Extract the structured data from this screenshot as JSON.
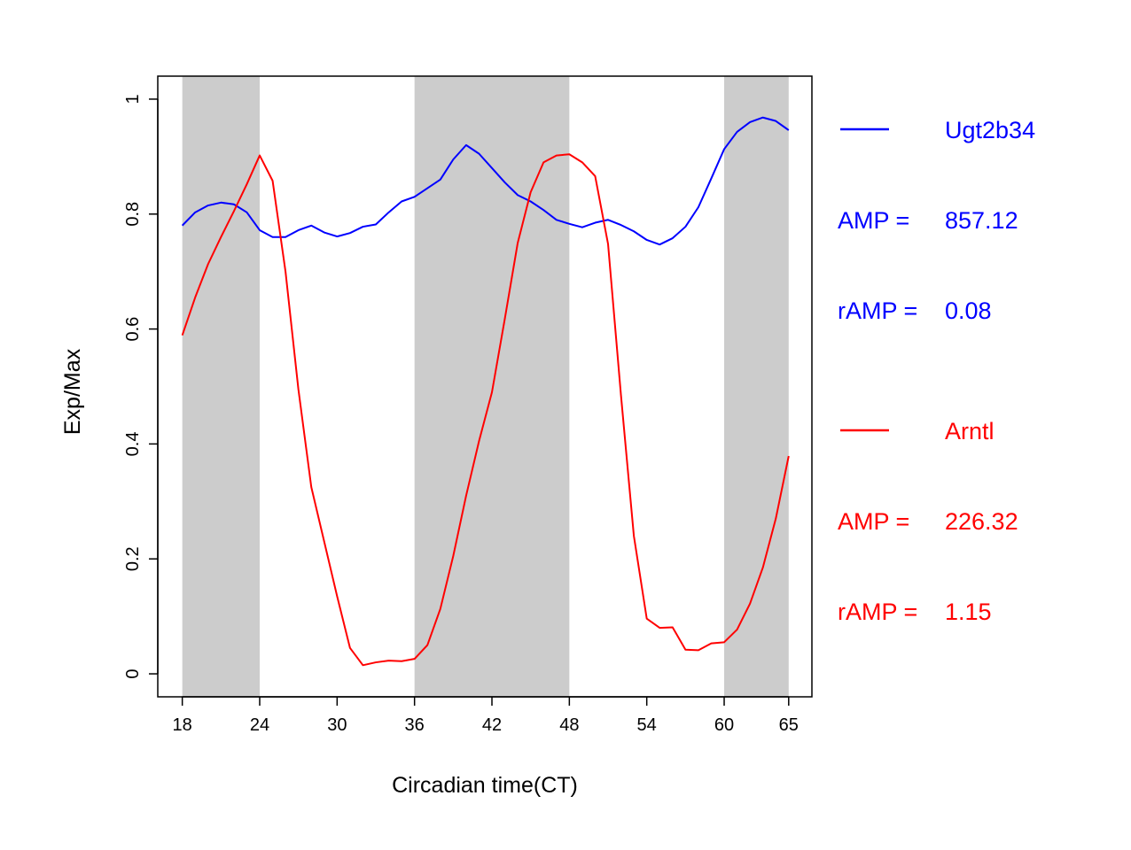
{
  "chart_data": {
    "type": "line",
    "xlabel": "Circadian time(CT)",
    "ylabel": "Exp/Max",
    "xlim": [
      16.1,
      66.8
    ],
    "ylim": [
      -0.04,
      1.04
    ],
    "x_ticks": [
      18,
      24,
      30,
      36,
      42,
      48,
      54,
      60,
      65
    ],
    "y_ticks": [
      0,
      0.2,
      0.4,
      0.6,
      0.8,
      1
    ],
    "y_tick_labels": [
      "0",
      "0.2",
      "0.4",
      "0.6",
      "0.8",
      "1"
    ],
    "grid": false,
    "shaded_regions": [
      [
        18,
        24
      ],
      [
        36,
        48
      ],
      [
        60,
        65
      ]
    ],
    "shade_color": "#cccccc",
    "x": [
      18,
      19,
      20,
      21,
      22,
      23,
      24,
      25,
      26,
      27,
      28,
      29,
      30,
      31,
      32,
      33,
      34,
      35,
      36,
      37,
      38,
      39,
      40,
      41,
      42,
      43,
      44,
      45,
      46,
      47,
      48,
      49,
      50,
      51,
      52,
      53,
      54,
      55,
      56,
      57,
      58,
      59,
      60,
      61,
      62,
      63,
      64,
      65
    ],
    "series": [
      {
        "name": "Ugt2b34",
        "color": "#0000ff",
        "values": [
          0.78,
          0.803,
          0.815,
          0.82,
          0.817,
          0.803,
          0.772,
          0.76,
          0.76,
          0.772,
          0.78,
          0.768,
          0.761,
          0.767,
          0.778,
          0.782,
          0.803,
          0.822,
          0.83,
          0.845,
          0.86,
          0.895,
          0.92,
          0.905,
          0.88,
          0.855,
          0.833,
          0.822,
          0.807,
          0.79,
          0.783,
          0.777,
          0.785,
          0.79,
          0.781,
          0.77,
          0.755,
          0.747,
          0.758,
          0.778,
          0.812,
          0.862,
          0.913,
          0.943,
          0.96,
          0.968,
          0.962,
          0.946
        ]
      },
      {
        "name": "Arntl",
        "color": "#ff0000",
        "values": [
          0.589,
          0.655,
          0.713,
          0.76,
          0.805,
          0.852,
          0.902,
          0.858,
          0.7,
          0.495,
          0.325,
          0.23,
          0.135,
          0.045,
          0.015,
          0.02,
          0.023,
          0.022,
          0.026,
          0.05,
          0.113,
          0.205,
          0.31,
          0.405,
          0.49,
          0.618,
          0.75,
          0.838,
          0.89,
          0.902,
          0.904,
          0.89,
          0.866,
          0.748,
          0.485,
          0.24,
          0.096,
          0.08,
          0.081,
          0.042,
          0.041,
          0.053,
          0.055,
          0.077,
          0.122,
          0.185,
          0.27,
          0.379
        ]
      }
    ],
    "legend": {
      "placement": "right",
      "entries": [
        {
          "name": "Ugt2b34",
          "color": "#0000ff",
          "amp_label": "AMP =",
          "amp_value": "857.12",
          "ramp_label": "rAMP =",
          "ramp_value": "0.08"
        },
        {
          "name": "Arntl",
          "color": "#ff0000",
          "amp_label": "AMP =",
          "amp_value": "226.32",
          "ramp_label": "rAMP =",
          "ramp_value": "1.15"
        }
      ]
    }
  }
}
